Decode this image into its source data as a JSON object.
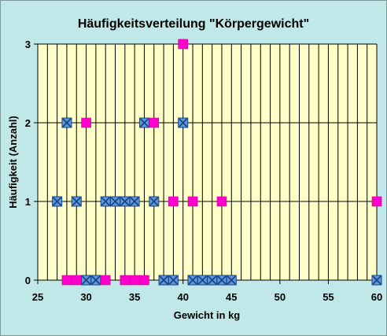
{
  "chart_data": {
    "type": "scatter",
    "title": "Häufigkeitsverteilung \"Körpergewicht\"",
    "xlabel": "Gewicht in kg",
    "ylabel": "Häufigkeit (Anzahl)",
    "xlim": [
      25,
      60
    ],
    "ylim": [
      0,
      3
    ],
    "x_ticks": [
      25,
      30,
      35,
      40,
      45,
      50,
      55,
      60
    ],
    "y_ticks": [
      0,
      1,
      2,
      3
    ],
    "grid": {
      "vertical": true,
      "horizontal": true
    },
    "legend": "none",
    "colors": {
      "plot_background": "#ffffc8",
      "chart_background": "#c0e8e8",
      "gridline": "#000000"
    },
    "series": [
      {
        "marker": "square-x",
        "color": "#5b9bd5",
        "points": [
          {
            "x": 27,
            "y": 1
          },
          {
            "x": 28,
            "y": 2
          },
          {
            "x": 29,
            "y": 1
          },
          {
            "x": 30,
            "y": 0
          },
          {
            "x": 31,
            "y": 0
          },
          {
            "x": 32,
            "y": 1
          },
          {
            "x": 33,
            "y": 1
          },
          {
            "x": 34,
            "y": 1
          },
          {
            "x": 35,
            "y": 1
          },
          {
            "x": 36,
            "y": 2
          },
          {
            "x": 37,
            "y": 1
          },
          {
            "x": 38,
            "y": 0
          },
          {
            "x": 39,
            "y": 0
          },
          {
            "x": 40,
            "y": 2
          },
          {
            "x": 41,
            "y": 0
          },
          {
            "x": 42,
            "y": 0
          },
          {
            "x": 43,
            "y": 0
          },
          {
            "x": 44,
            "y": 0
          },
          {
            "x": 45,
            "y": 0
          },
          {
            "x": 60,
            "y": 0
          }
        ]
      },
      {
        "marker": "square",
        "color": "#ff00cc",
        "points": [
          {
            "x": 28,
            "y": 0
          },
          {
            "x": 29,
            "y": 0
          },
          {
            "x": 30,
            "y": 2
          },
          {
            "x": 32,
            "y": 0
          },
          {
            "x": 34,
            "y": 0
          },
          {
            "x": 35,
            "y": 0
          },
          {
            "x": 36,
            "y": 0
          },
          {
            "x": 37,
            "y": 2
          },
          {
            "x": 39,
            "y": 1
          },
          {
            "x": 40,
            "y": 3
          },
          {
            "x": 41,
            "y": 1
          },
          {
            "x": 44,
            "y": 1
          },
          {
            "x": 60,
            "y": 1
          }
        ]
      }
    ]
  }
}
